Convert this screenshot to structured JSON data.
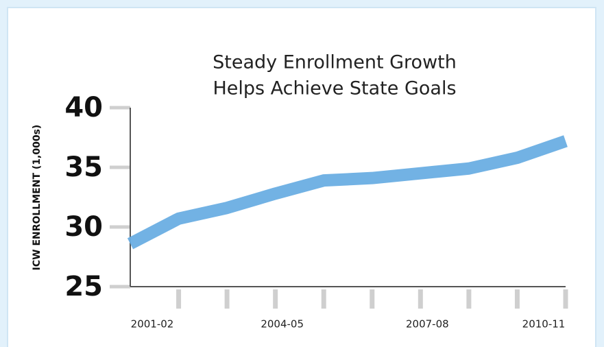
{
  "chart_data": {
    "type": "line",
    "title": [
      "Steady Enrollment Growth",
      "Helps Achieve State Goals"
    ],
    "y_label": "ICW ENROLLMENT (1,000s)",
    "categories": [
      "2001-02",
      null,
      null,
      "2004-05",
      null,
      null,
      "2007-08",
      null,
      null,
      "2010-11"
    ],
    "series": [
      {
        "name": "ICW Enrollment",
        "color": "#6aaee3",
        "values": [
          28.6,
          30.7,
          31.6,
          32.8,
          33.9,
          34.1,
          34.5,
          34.9,
          35.8,
          37.2
        ]
      }
    ],
    "ylim": [
      25,
      40
    ],
    "yticks": [
      25,
      30,
      35,
      40
    ]
  }
}
